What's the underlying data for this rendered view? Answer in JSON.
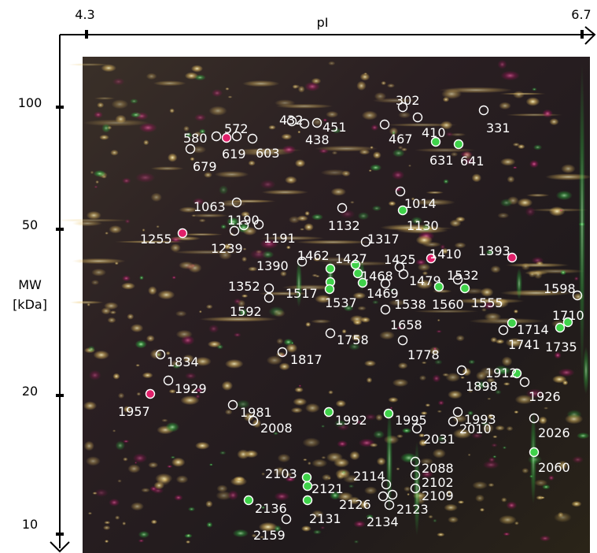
{
  "axes": {
    "x_label": "pI",
    "x_min_label": "4.3",
    "x_max_label": "6.7",
    "y_label_line1": "MW",
    "y_label_line2": "[kDa]",
    "y_ticks": [
      "100",
      "50",
      "20",
      "10"
    ]
  },
  "spots": [
    {
      "id": "302",
      "color": "none"
    },
    {
      "id": "410",
      "color": "none"
    },
    {
      "id": "331",
      "color": "none"
    },
    {
      "id": "432",
      "color": "none"
    },
    {
      "id": "451",
      "color": "none"
    },
    {
      "id": "438",
      "color": "none"
    },
    {
      "id": "467",
      "color": "none"
    },
    {
      "id": "572",
      "color": "none"
    },
    {
      "id": "580",
      "color": "none"
    },
    {
      "id": "619",
      "color": "#e0206a"
    },
    {
      "id": "603",
      "color": "none"
    },
    {
      "id": "679",
      "color": "none"
    },
    {
      "id": "631",
      "color": "#3fd24a"
    },
    {
      "id": "641",
      "color": "#3fd24a"
    },
    {
      "id": "1063",
      "color": "none"
    },
    {
      "id": "1014",
      "color": "none"
    },
    {
      "id": "1190",
      "color": "none"
    },
    {
      "id": "1132",
      "color": "none"
    },
    {
      "id": "1130",
      "color": "#3fd24a"
    },
    {
      "id": "1255",
      "color": "#e0206a"
    },
    {
      "id": "1239",
      "color": "none"
    },
    {
      "id": "1191",
      "color": "none"
    },
    {
      "id": "1317",
      "color": "none"
    },
    {
      "id": "1393",
      "color": "#e0206a"
    },
    {
      "id": "1410",
      "color": "#e0206a"
    },
    {
      "id": "1390",
      "color": "none"
    },
    {
      "id": "1462",
      "color": "#3fd24a"
    },
    {
      "id": "1427",
      "color": "#3fd24a"
    },
    {
      "id": "1425",
      "color": "none"
    },
    {
      "id": "1468",
      "color": "#3fd24a"
    },
    {
      "id": "1479",
      "color": "none"
    },
    {
      "id": "1532",
      "color": "none"
    },
    {
      "id": "1352",
      "color": "none"
    },
    {
      "id": "1517",
      "color": "#3fd24a"
    },
    {
      "id": "1537",
      "color": "#3fd24a"
    },
    {
      "id": "1469",
      "color": "#3fd24a"
    },
    {
      "id": "1538",
      "color": "none"
    },
    {
      "id": "1560",
      "color": "#3fd24a"
    },
    {
      "id": "1555",
      "color": "#3fd24a"
    },
    {
      "id": "1598",
      "color": "none"
    },
    {
      "id": "1592",
      "color": "none"
    },
    {
      "id": "1658",
      "color": "none"
    },
    {
      "id": "1710",
      "color": "#3fd24a"
    },
    {
      "id": "1714",
      "color": "#3fd24a"
    },
    {
      "id": "1741",
      "color": "none"
    },
    {
      "id": "1735",
      "color": "#3fd24a"
    },
    {
      "id": "1758",
      "color": "none"
    },
    {
      "id": "1778",
      "color": "none"
    },
    {
      "id": "1834",
      "color": "none"
    },
    {
      "id": "1817",
      "color": "none"
    },
    {
      "id": "1912",
      "color": "#3fd24a"
    },
    {
      "id": "1898",
      "color": "none"
    },
    {
      "id": "1929",
      "color": "none"
    },
    {
      "id": "1926",
      "color": "none"
    },
    {
      "id": "1957",
      "color": "#e0206a"
    },
    {
      "id": "1981",
      "color": "none"
    },
    {
      "id": "1992",
      "color": "#3fd24a"
    },
    {
      "id": "1995",
      "color": "#3fd24a"
    },
    {
      "id": "1993",
      "color": "none"
    },
    {
      "id": "2010",
      "color": "none"
    },
    {
      "id": "2026",
      "color": "none"
    },
    {
      "id": "2008",
      "color": "none"
    },
    {
      "id": "2031",
      "color": "none"
    },
    {
      "id": "2060",
      "color": "#3fd24a"
    },
    {
      "id": "2088",
      "color": "none"
    },
    {
      "id": "2103",
      "color": "#3fd24a"
    },
    {
      "id": "2114",
      "color": "none"
    },
    {
      "id": "2102",
      "color": "none"
    },
    {
      "id": "2121",
      "color": "#3fd24a"
    },
    {
      "id": "2109",
      "color": "none"
    },
    {
      "id": "2136",
      "color": "#3fd24a"
    },
    {
      "id": "2126",
      "color": "none"
    },
    {
      "id": "2123",
      "color": "none"
    },
    {
      "id": "2131",
      "color": "#3fd24a"
    },
    {
      "id": "2134",
      "color": "none"
    },
    {
      "id": "2159",
      "color": "none"
    }
  ]
}
